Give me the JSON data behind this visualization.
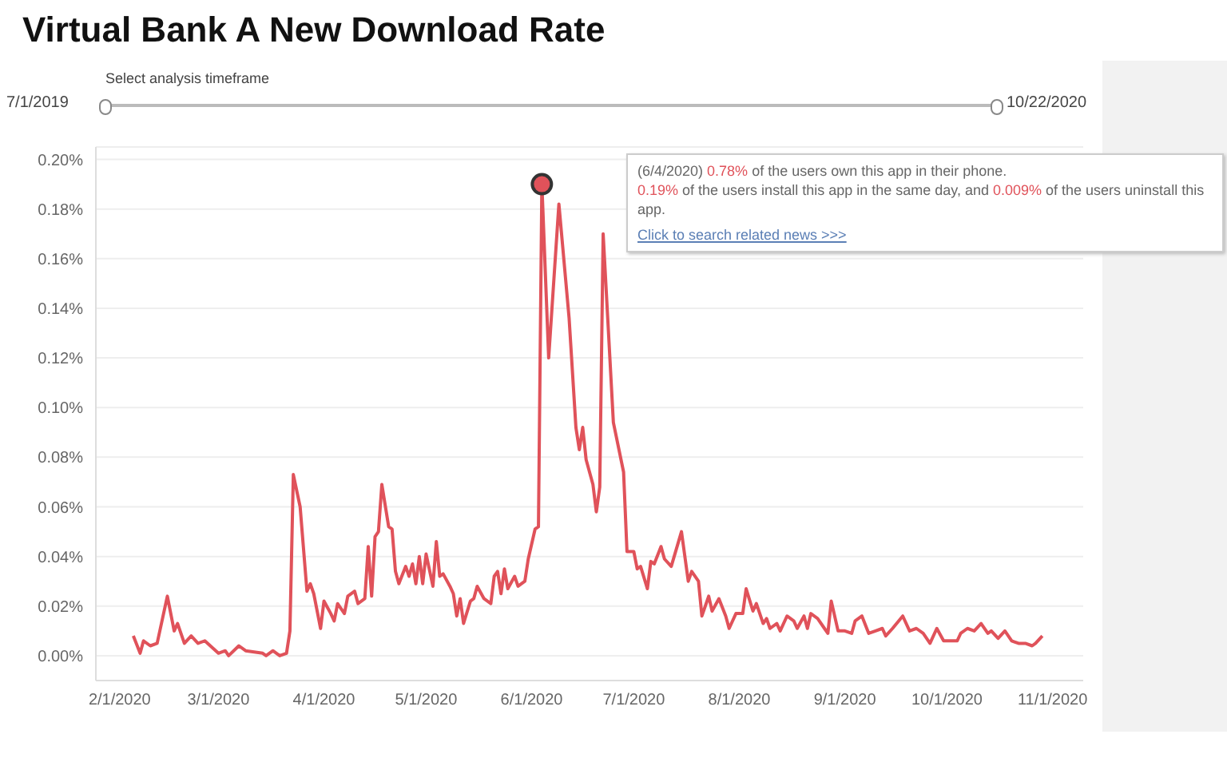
{
  "chart_data": {
    "type": "line",
    "title": "Virtual Bank A New Download Rate",
    "x": [
      "2020-02-05",
      "2020-02-07",
      "2020-02-08",
      "2020-02-10",
      "2020-02-12",
      "2020-02-15",
      "2020-02-17",
      "2020-02-18",
      "2020-02-20",
      "2020-02-22",
      "2020-02-24",
      "2020-02-26",
      "2020-03-01",
      "2020-03-03",
      "2020-03-04",
      "2020-03-07",
      "2020-03-09",
      "2020-03-14",
      "2020-03-15",
      "2020-03-17",
      "2020-03-19",
      "2020-03-21",
      "2020-03-22",
      "2020-03-23",
      "2020-03-25",
      "2020-03-27",
      "2020-03-28",
      "2020-03-29",
      "2020-03-31",
      "2020-04-01",
      "2020-04-03",
      "2020-04-04",
      "2020-04-05",
      "2020-04-07",
      "2020-04-08",
      "2020-04-10",
      "2020-04-11",
      "2020-04-13",
      "2020-04-14",
      "2020-04-15",
      "2020-04-16",
      "2020-04-17",
      "2020-04-18",
      "2020-04-20",
      "2020-04-21",
      "2020-04-22",
      "2020-04-23",
      "2020-04-25",
      "2020-04-26",
      "2020-04-27",
      "2020-04-28",
      "2020-04-29",
      "2020-04-30",
      "2020-05-01",
      "2020-05-03",
      "2020-05-04",
      "2020-05-05",
      "2020-05-06",
      "2020-05-08",
      "2020-05-09",
      "2020-05-10",
      "2020-05-11",
      "2020-05-12",
      "2020-05-14",
      "2020-05-15",
      "2020-05-16",
      "2020-05-18",
      "2020-05-20",
      "2020-05-21",
      "2020-05-22",
      "2020-05-23",
      "2020-05-24",
      "2020-05-25",
      "2020-05-27",
      "2020-05-28",
      "2020-05-30",
      "2020-05-31",
      "2020-06-02",
      "2020-06-03",
      "2020-06-04",
      "2020-06-06",
      "2020-06-09",
      "2020-06-12",
      "2020-06-14",
      "2020-06-15",
      "2020-06-16",
      "2020-06-17",
      "2020-06-19",
      "2020-06-20",
      "2020-06-21",
      "2020-06-22",
      "2020-06-25",
      "2020-06-28",
      "2020-06-29",
      "2020-07-01",
      "2020-07-02",
      "2020-07-03",
      "2020-07-05",
      "2020-07-06",
      "2020-07-07",
      "2020-07-09",
      "2020-07-10",
      "2020-07-12",
      "2020-07-15",
      "2020-07-17",
      "2020-07-18",
      "2020-07-20",
      "2020-07-21",
      "2020-07-23",
      "2020-07-24",
      "2020-07-26",
      "2020-07-28",
      "2020-07-29",
      "2020-07-31",
      "2020-08-02",
      "2020-08-03",
      "2020-08-05",
      "2020-08-06",
      "2020-08-08",
      "2020-08-09",
      "2020-08-10",
      "2020-08-12",
      "2020-08-13",
      "2020-08-15",
      "2020-08-17",
      "2020-08-18",
      "2020-08-20",
      "2020-08-21",
      "2020-08-22",
      "2020-08-24",
      "2020-08-26",
      "2020-08-27",
      "2020-08-28",
      "2020-08-30",
      "2020-09-01",
      "2020-09-03",
      "2020-09-04",
      "2020-09-06",
      "2020-09-08",
      "2020-09-10",
      "2020-09-12",
      "2020-09-13",
      "2020-09-15",
      "2020-09-18",
      "2020-09-20",
      "2020-09-22",
      "2020-09-24",
      "2020-09-26",
      "2020-09-28",
      "2020-09-30",
      "2020-10-02",
      "2020-10-04",
      "2020-10-05",
      "2020-10-07",
      "2020-10-09",
      "2020-10-11",
      "2020-10-13",
      "2020-10-14",
      "2020-10-16",
      "2020-10-18",
      "2020-10-20",
      "2020-10-22",
      "2020-10-24",
      "2020-10-26",
      "2020-10-27",
      "2020-10-29"
    ],
    "series": [
      {
        "color": "#e0525a",
        "values": [
          0.008,
          0.001,
          0.006,
          0.004,
          0.005,
          0.024,
          0.01,
          0.013,
          0.005,
          0.008,
          0.005,
          0.006,
          0.001,
          0.002,
          0.0,
          0.004,
          0.002,
          0.001,
          0.0,
          0.002,
          0.0,
          0.001,
          0.01,
          0.073,
          0.06,
          0.026,
          0.029,
          0.025,
          0.011,
          0.022,
          0.017,
          0.014,
          0.021,
          0.017,
          0.024,
          0.026,
          0.021,
          0.023,
          0.044,
          0.024,
          0.048,
          0.05,
          0.069,
          0.052,
          0.051,
          0.034,
          0.029,
          0.036,
          0.032,
          0.037,
          0.029,
          0.04,
          0.029,
          0.041,
          0.028,
          0.046,
          0.032,
          0.033,
          0.028,
          0.025,
          0.016,
          0.023,
          0.013,
          0.022,
          0.023,
          0.028,
          0.023,
          0.021,
          0.032,
          0.034,
          0.025,
          0.035,
          0.027,
          0.032,
          0.028,
          0.03,
          0.039,
          0.051,
          0.052,
          0.19,
          0.12,
          0.182,
          0.136,
          0.092,
          0.083,
          0.092,
          0.079,
          0.069,
          0.058,
          0.068,
          0.17,
          0.094,
          0.074,
          0.042,
          0.042,
          0.035,
          0.036,
          0.027,
          0.038,
          0.037,
          0.044,
          0.039,
          0.036,
          0.05,
          0.03,
          0.034,
          0.03,
          0.016,
          0.024,
          0.018,
          0.023,
          0.016,
          0.011,
          0.017,
          0.017,
          0.027,
          0.018,
          0.021,
          0.013,
          0.015,
          0.011,
          0.013,
          0.01,
          0.016,
          0.014,
          0.011,
          0.016,
          0.011,
          0.017,
          0.015,
          0.011,
          0.009,
          0.022,
          0.01,
          0.01,
          0.009,
          0.014,
          0.016,
          0.009,
          0.01,
          0.011,
          0.008,
          0.011,
          0.016,
          0.01,
          0.011,
          0.009,
          0.005,
          0.011,
          0.006,
          0.006,
          0.006,
          0.009,
          0.011,
          0.01,
          0.013,
          0.009,
          0.01,
          0.007,
          0.01,
          0.006,
          0.005,
          0.005,
          0.004,
          0.005,
          0.008
        ]
      },
      {
        "type": "scatter",
        "marker": "circle",
        "color": "#e0525a",
        "x": [
          "2020-06-04"
        ],
        "values": [
          0.19
        ]
      }
    ],
    "xlim": [
      "2020-01-25",
      "2020-11-10"
    ],
    "xticks": [
      {
        "value": "2020-02-01",
        "label": "2/1/2020"
      },
      {
        "value": "2020-03-01",
        "label": "3/1/2020"
      },
      {
        "value": "2020-04-01",
        "label": "4/1/2020"
      },
      {
        "value": "2020-05-01",
        "label": "5/1/2020"
      },
      {
        "value": "2020-06-01",
        "label": "6/1/2020"
      },
      {
        "value": "2020-07-01",
        "label": "7/1/2020"
      },
      {
        "value": "2020-08-01",
        "label": "8/1/2020"
      },
      {
        "value": "2020-09-01",
        "label": "9/1/2020"
      },
      {
        "value": "2020-10-01",
        "label": "10/1/2020"
      },
      {
        "value": "2020-11-01",
        "label": "11/1/2020"
      }
    ],
    "ylim": [
      -0.01,
      0.205
    ],
    "yticks": [
      {
        "value": 0,
        "label": "0.00%"
      },
      {
        "value": 0.02,
        "label": "0.02%"
      },
      {
        "value": 0.04,
        "label": "0.04%"
      },
      {
        "value": 0.06,
        "label": "0.06%"
      },
      {
        "value": 0.08,
        "label": "0.08%"
      },
      {
        "value": 0.1,
        "label": "0.10%"
      },
      {
        "value": 0.12,
        "label": "0.12%"
      },
      {
        "value": 0.14,
        "label": "0.14%"
      },
      {
        "value": 0.16,
        "label": "0.16%"
      },
      {
        "value": 0.18,
        "label": "0.18%"
      },
      {
        "value": 0.2,
        "label": "0.20%"
      }
    ],
    "grid": "y",
    "marker": "none",
    "line_style": "solid",
    "legend": false,
    "annotations": [
      "Select analysis timeframe",
      "7/1/2019",
      "10/22/2020",
      "(6/4/2020)  0.78% of the users own this app in their phone.",
      "0.19% of the users install this app in the same day, and 0.009% of the users uninstall this app.",
      "Click to search related news >>>"
    ]
  }
}
